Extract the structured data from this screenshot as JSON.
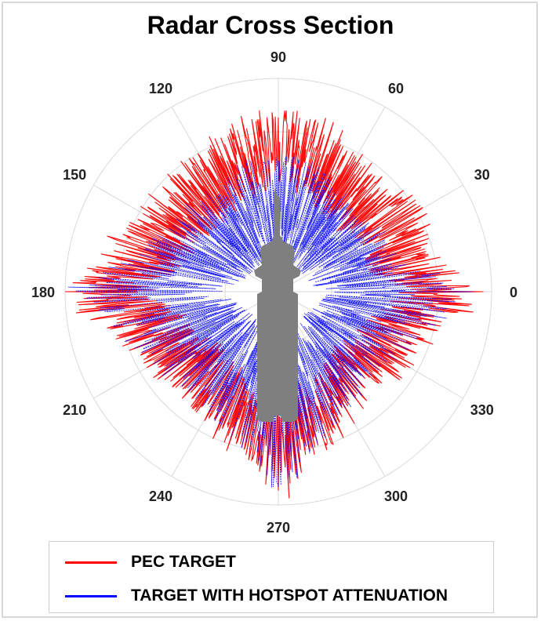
{
  "chart_data": {
    "type": "polar-line",
    "title": "Radar Cross Section",
    "angle_ticks": [
      "0",
      "30",
      "60",
      "90",
      "120",
      "150",
      "180",
      "210",
      "240",
      "270",
      "300",
      "330"
    ],
    "radial_rings": 4,
    "grid": true,
    "legend_position": "bottom",
    "series": [
      {
        "name": "PEC TARGET",
        "color": "#ff0000",
        "angles_deg": [
          0,
          15,
          30,
          45,
          60,
          75,
          90,
          105,
          120,
          135,
          150,
          165,
          180,
          195,
          210,
          225,
          240,
          255,
          270,
          285,
          300,
          315,
          330,
          345
        ],
        "values": [
          0.95,
          0.74,
          0.8,
          0.7,
          0.74,
          0.82,
          0.88,
          0.82,
          0.76,
          0.74,
          0.78,
          0.82,
          0.98,
          0.8,
          0.7,
          0.66,
          0.7,
          0.78,
          0.96,
          0.78,
          0.7,
          0.64,
          0.7,
          0.78
        ]
      },
      {
        "name": "TARGET WITH HOTSPOT ATTENUATION",
        "color": "#0000ff",
        "angles_deg": [
          0,
          15,
          30,
          45,
          60,
          75,
          90,
          105,
          120,
          135,
          150,
          165,
          180,
          195,
          210,
          225,
          240,
          255,
          270,
          285,
          300,
          315,
          330,
          345
        ],
        "values": [
          0.88,
          0.56,
          0.56,
          0.52,
          0.56,
          0.64,
          0.66,
          0.62,
          0.56,
          0.58,
          0.6,
          0.7,
          0.96,
          0.74,
          0.66,
          0.62,
          0.66,
          0.74,
          0.95,
          0.74,
          0.66,
          0.58,
          0.62,
          0.72
        ]
      }
    ]
  },
  "legend": {
    "item1_label": "PEC TARGET",
    "item2_label": "TARGET WITH HOTSPOT ATTENUATION"
  },
  "colors": {
    "pec": "#ff0000",
    "hotspot": "#0000ff",
    "target_silhouette": "#7f7f7f",
    "grid": "#d9d9d9"
  }
}
